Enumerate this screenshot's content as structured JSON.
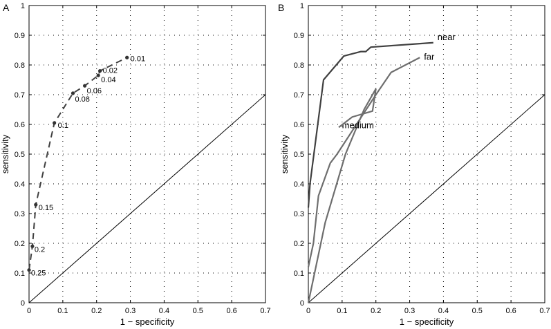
{
  "chart_data": [
    {
      "panel_label": "A",
      "type": "line",
      "xlabel": "1 − specificity",
      "ylabel": "sensitivity",
      "xlim": [
        0,
        0.7
      ],
      "ylim": [
        0,
        1
      ],
      "xticks": [
        "0",
        "0.1",
        "0.2",
        "0.3",
        "0.4",
        "0.5",
        "0.6",
        "0.7"
      ],
      "yticks": [
        "0",
        "0.1",
        "0.2",
        "0.3",
        "0.4",
        "0.5",
        "0.6",
        "0.7",
        "0.8",
        "0.9",
        "1"
      ],
      "grid": true,
      "diagonal": {
        "x": [
          0,
          0.7
        ],
        "y": [
          0,
          0.7
        ]
      },
      "series": [
        {
          "style": "dashed-with-markers",
          "color": "#404040",
          "points": [
            {
              "x": 0.0,
              "y": 0.11,
              "label": "0.25"
            },
            {
              "x": 0.01,
              "y": 0.19,
              "label": "0.2"
            },
            {
              "x": 0.02,
              "y": 0.33,
              "label": "0.15"
            },
            {
              "x": 0.075,
              "y": 0.605,
              "label": "0.1"
            },
            {
              "x": 0.13,
              "y": 0.705,
              "label": "0.08"
            },
            {
              "x": 0.165,
              "y": 0.73,
              "label": "0.06"
            },
            {
              "x": 0.205,
              "y": 0.765,
              "label": "0.04"
            },
            {
              "x": 0.21,
              "y": 0.78,
              "label": "0.02"
            },
            {
              "x": 0.29,
              "y": 0.825,
              "label": "0.01"
            }
          ]
        }
      ]
    },
    {
      "panel_label": "B",
      "type": "line",
      "xlabel": "1 − specificity",
      "ylabel": "sensitivity",
      "xlim": [
        0,
        0.7
      ],
      "ylim": [
        0,
        1
      ],
      "xticks": [
        "0",
        "0.1",
        "0.2",
        "0.3",
        "0.4",
        "0.5",
        "0.6",
        "0.7"
      ],
      "yticks": [
        "0",
        "0.1",
        "0.2",
        "0.3",
        "0.4",
        "0.5",
        "0.6",
        "0.7",
        "0.8",
        "0.9",
        "1"
      ],
      "grid": true,
      "diagonal": {
        "x": [
          0,
          0.7
        ],
        "y": [
          0,
          0.7
        ]
      },
      "series": [
        {
          "name": "near",
          "color": "#404040",
          "x": [
            0,
            0.005,
            0.045,
            0.105,
            0.155,
            0.17,
            0.185,
            0.37
          ],
          "y": [
            0.32,
            0.4,
            0.75,
            0.83,
            0.845,
            0.845,
            0.86,
            0.875
          ]
        },
        {
          "name": "far",
          "color": "#6e6e6e",
          "x": [
            0,
            0.015,
            0.03,
            0.065,
            0.085,
            0.2,
            0.245,
            0.33
          ],
          "y": [
            0.12,
            0.2,
            0.36,
            0.47,
            0.5,
            0.7,
            0.775,
            0.825
          ]
        },
        {
          "name": "medium",
          "color": "#6e6e6e",
          "x": [
            0,
            0.05,
            0.11,
            0.165,
            0.2
          ],
          "y": [
            0,
            0.27,
            0.5,
            0.65,
            0.72
          ]
        },
        {
          "name": "",
          "color": "#6e6e6e",
          "x": [
            0.09,
            0.13,
            0.19,
            0.2
          ],
          "y": [
            0.59,
            0.625,
            0.645,
            0.72
          ]
        }
      ]
    }
  ]
}
